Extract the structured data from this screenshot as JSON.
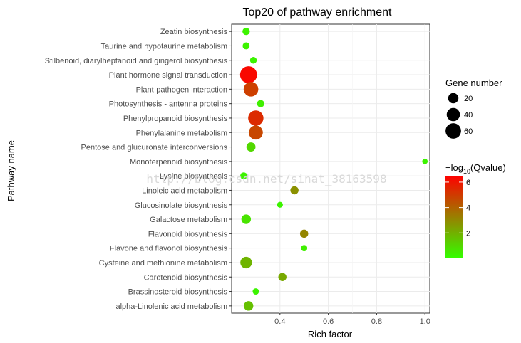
{
  "chart_data": {
    "type": "scatter",
    "title": "Top20 of pathway enrichment",
    "xlabel": "Rich factor",
    "ylabel": "Pathway name",
    "xlim": [
      0.2,
      1.02
    ],
    "x_ticks": [
      0.4,
      0.6,
      0.8,
      1.0
    ],
    "x_tick_labels": [
      "0.4",
      "0.6",
      "0.8",
      "1.0"
    ],
    "grid": true,
    "legend_position": "right",
    "categories": [
      "Zeatin biosynthesis",
      "Taurine and hypotaurine metabolism",
      "Stilbenoid, diarylheptanoid and gingerol biosynthesis",
      "Plant hormone signal transduction",
      "Plant-pathogen interaction",
      "Photosynthesis - antenna proteins",
      "Phenylpropanoid biosynthesis",
      "Phenylalanine metabolism",
      "Pentose and glucuronate interconversions",
      "Monoterpenoid biosynthesis",
      "Lysine biosynthesis",
      "Linoleic acid metabolism",
      "Glucosinolate biosynthesis",
      "Galactose metabolism",
      "Flavonoid biosynthesis",
      "Flavone and flavonol biosynthesis",
      "Cysteine and methionine metabolism",
      "Carotenoid biosynthesis",
      "Brassinosteroid biosynthesis",
      "alpha-Linolenic acid metabolism"
    ],
    "points": [
      {
        "pathway": "Zeatin biosynthesis",
        "rich_factor": 0.26,
        "gene_number": 7,
        "neg_log10_q": 0.3
      },
      {
        "pathway": "Taurine and hypotaurine metabolism",
        "rich_factor": 0.26,
        "gene_number": 6,
        "neg_log10_q": 0.3
      },
      {
        "pathway": "Stilbenoid, diarylheptanoid and gingerol biosynthesis",
        "rich_factor": 0.29,
        "gene_number": 5,
        "neg_log10_q": 0.3
      },
      {
        "pathway": "Plant hormone signal transduction",
        "rich_factor": 0.27,
        "gene_number": 75,
        "neg_log10_q": 6.3
      },
      {
        "pathway": "Plant-pathogen interaction",
        "rich_factor": 0.28,
        "gene_number": 52,
        "neg_log10_q": 4.9
      },
      {
        "pathway": "Photosynthesis - antenna proteins",
        "rich_factor": 0.32,
        "gene_number": 7,
        "neg_log10_q": 0.4
      },
      {
        "pathway": "Phenylpropanoid biosynthesis",
        "rich_factor": 0.3,
        "gene_number": 58,
        "neg_log10_q": 5.4
      },
      {
        "pathway": "Phenylalanine metabolism",
        "rich_factor": 0.3,
        "gene_number": 47,
        "neg_log10_q": 4.7
      },
      {
        "pathway": "Pentose and glucuronate interconversions",
        "rich_factor": 0.28,
        "gene_number": 14,
        "neg_log10_q": 1.0
      },
      {
        "pathway": "Monoterpenoid biosynthesis",
        "rich_factor": 1.0,
        "gene_number": 2,
        "neg_log10_q": 0.3
      },
      {
        "pathway": "Lysine biosynthesis",
        "rich_factor": 0.25,
        "gene_number": 6,
        "neg_log10_q": 0.3
      },
      {
        "pathway": "Linoleic acid metabolism",
        "rich_factor": 0.46,
        "gene_number": 10,
        "neg_log10_q": 2.8
      },
      {
        "pathway": "Glucosinolate biosynthesis",
        "rich_factor": 0.4,
        "gene_number": 3,
        "neg_log10_q": 0.3
      },
      {
        "pathway": "Galactose metabolism",
        "rich_factor": 0.26,
        "gene_number": 16,
        "neg_log10_q": 0.7
      },
      {
        "pathway": "Flavonoid biosynthesis",
        "rich_factor": 0.5,
        "gene_number": 10,
        "neg_log10_q": 3.1
      },
      {
        "pathway": "Flavone and flavonol biosynthesis",
        "rich_factor": 0.5,
        "gene_number": 4,
        "neg_log10_q": 0.4
      },
      {
        "pathway": "Cysteine and methionine metabolism",
        "rich_factor": 0.26,
        "gene_number": 28,
        "neg_log10_q": 1.9
      },
      {
        "pathway": "Carotenoid biosynthesis",
        "rich_factor": 0.41,
        "gene_number": 10,
        "neg_log10_q": 2.2
      },
      {
        "pathway": "Brassinosteroid biosynthesis",
        "rich_factor": 0.3,
        "gene_number": 4,
        "neg_log10_q": 0.3
      },
      {
        "pathway": "alpha-Linolenic acid metabolism",
        "rich_factor": 0.27,
        "gene_number": 16,
        "neg_log10_q": 1.6
      }
    ],
    "size_legend": {
      "title": "Gene number",
      "values": [
        20,
        40,
        60
      ],
      "labels": [
        "20",
        "40",
        "60"
      ]
    },
    "color_legend": {
      "title_prefix": "−log",
      "title_sub": "10",
      "title_suffix": "(Qvalue)",
      "range": [
        0,
        6.5
      ],
      "ticks": [
        2,
        4,
        6
      ],
      "labels": [
        "2",
        "4",
        "6"
      ],
      "low_color": "#33ff00",
      "high_color": "#ff0000"
    },
    "watermark": "http://blog.csdn.net/sinat_38163598"
  }
}
